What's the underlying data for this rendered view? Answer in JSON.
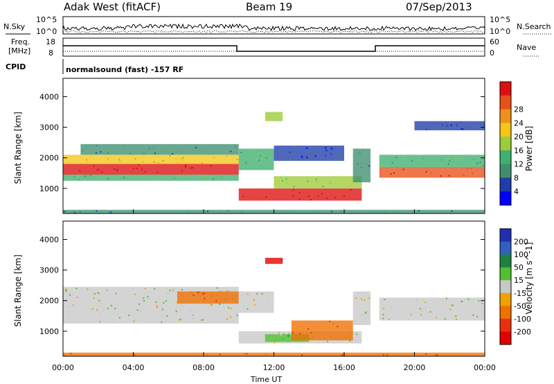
{
  "header": {
    "station": "Adak West (fitACF)",
    "beam": "Beam 19",
    "date": "07/Sep/2013"
  },
  "top_panels": {
    "nsky_label": "N.Sky",
    "nsky_ticks": [
      "10^5",
      "10^0"
    ],
    "nsearch_label": "N.Search",
    "freq_label_line1": "Freq.",
    "freq_label_line2": "[MHz]",
    "freq_ticks": [
      "18",
      "8"
    ],
    "nave_label": "Nave",
    "nave_ticks": [
      "60",
      "0"
    ],
    "cpid_label": "CPID",
    "cpid_text": "normalsound (fast) -157 RF"
  },
  "chart_data": [
    {
      "type": "heatmap",
      "title": "",
      "xlabel": "",
      "ylabel": "Slant Range [km]",
      "x_ticks": [
        "00:00",
        "04:00",
        "08:00",
        "12:00",
        "16:00",
        "20:00",
        "00:00"
      ],
      "y_ticks": [
        1000,
        2000,
        3000,
        4000
      ],
      "xlim_hours": [
        0,
        24
      ],
      "ylim_km": [
        180,
        4600
      ],
      "colorbar": {
        "label": "Power [dB]",
        "ticks": [
          "4",
          "8",
          "12",
          "16",
          "20",
          "24",
          "28"
        ],
        "colors": [
          "#0000ff",
          "#1f3da8",
          "#3f8f6f",
          "#3fb06f",
          "#9ccc3a",
          "#f5c518",
          "#f0901a",
          "#e8501a",
          "#dd1010"
        ]
      },
      "echo_regions": [
        {
          "t0": 0.0,
          "t1": 10.0,
          "r0": 1450,
          "r1": 1800,
          "level": 8
        },
        {
          "t0": 0.0,
          "t1": 10.0,
          "r0": 1800,
          "r1": 2100,
          "level": 5
        },
        {
          "t0": 1.0,
          "t1": 10.0,
          "r0": 2100,
          "r1": 2450,
          "level": 2
        },
        {
          "t0": 0.0,
          "t1": 10.0,
          "r0": 1250,
          "r1": 1450,
          "level": 3
        },
        {
          "t0": 10.0,
          "t1": 12.0,
          "r0": 1600,
          "r1": 2300,
          "level": 3
        },
        {
          "t0": 10.0,
          "t1": 17.0,
          "r0": 600,
          "r1": 1000,
          "level": 8
        },
        {
          "t0": 12.0,
          "t1": 17.0,
          "r0": 1000,
          "r1": 1400,
          "level": 4
        },
        {
          "t0": 12.0,
          "t1": 16.0,
          "r0": 1900,
          "r1": 2400,
          "level": 1
        },
        {
          "t0": 16.5,
          "t1": 17.5,
          "r0": 1200,
          "r1": 2300,
          "level": 2
        },
        {
          "t0": 18.0,
          "t1": 24.0,
          "r0": 1350,
          "r1": 1700,
          "level": 7
        },
        {
          "t0": 18.0,
          "t1": 24.0,
          "r0": 1700,
          "r1": 2100,
          "level": 3
        },
        {
          "t0": 20.0,
          "t1": 24.0,
          "r0": 2900,
          "r1": 3200,
          "level": 1
        },
        {
          "t0": 11.5,
          "t1": 12.5,
          "r0": 3200,
          "r1": 3500,
          "level": 4
        },
        {
          "t0": 0.0,
          "t1": 24.0,
          "r0": 180,
          "r1": 300,
          "level": 2
        }
      ]
    },
    {
      "type": "heatmap",
      "title": "",
      "xlabel": "Time UT",
      "ylabel": "Slant Range [km]",
      "x_ticks": [
        "00:00",
        "04:00",
        "08:00",
        "12:00",
        "16:00",
        "20:00",
        "00:00"
      ],
      "y_ticks": [
        1000,
        2000,
        3000,
        4000
      ],
      "xlim_hours": [
        0,
        24
      ],
      "ylim_km": [
        180,
        4600
      ],
      "colorbar": {
        "label": "Velocity [m s^-1]",
        "ticks": [
          "200",
          "100",
          "50",
          "15",
          "-15",
          "-50",
          "-100",
          "-200"
        ],
        "colors": [
          "#2030b0",
          "#3060c0",
          "#208040",
          "#50c030",
          "#c8c8c8",
          "#f0a000",
          "#f07000",
          "#e83010",
          "#e00000"
        ]
      },
      "echo_regions": [
        {
          "t0": 0.0,
          "t1": 10.0,
          "r0": 1250,
          "r1": 2450,
          "level": 4
        },
        {
          "t0": 6.5,
          "t1": 10.0,
          "r0": 1900,
          "r1": 2300,
          "level": 6
        },
        {
          "t0": 10.0,
          "t1": 12.0,
          "r0": 1600,
          "r1": 2300,
          "level": 4
        },
        {
          "t0": 10.0,
          "t1": 17.0,
          "r0": 600,
          "r1": 1000,
          "level": 4
        },
        {
          "t0": 11.5,
          "t1": 14.0,
          "r0": 650,
          "r1": 900,
          "level": 3
        },
        {
          "t0": 13.0,
          "t1": 16.5,
          "r0": 700,
          "r1": 1350,
          "level": 6
        },
        {
          "t0": 16.5,
          "t1": 17.5,
          "r0": 1200,
          "r1": 2300,
          "level": 4
        },
        {
          "t0": 18.0,
          "t1": 24.0,
          "r0": 1350,
          "r1": 2100,
          "level": 4
        },
        {
          "t0": 11.5,
          "t1": 12.5,
          "r0": 3200,
          "r1": 3400,
          "level": 8
        },
        {
          "t0": 0.0,
          "t1": 24.0,
          "r0": 180,
          "r1": 300,
          "level": 6
        }
      ]
    }
  ]
}
